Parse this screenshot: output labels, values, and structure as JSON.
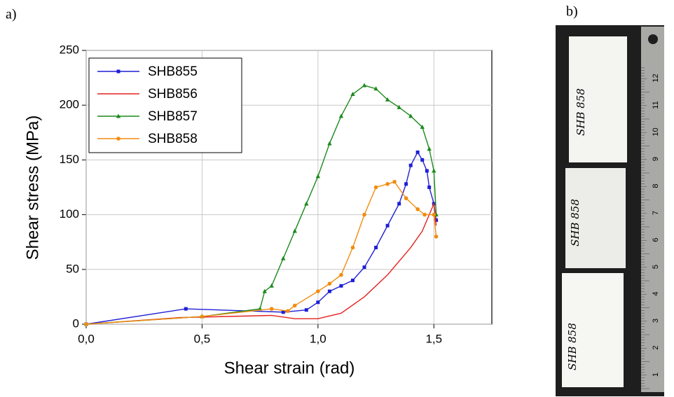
{
  "panels": [
    "a)",
    "b)"
  ],
  "chart_data": {
    "type": "line",
    "x_label": "Shear strain (rad)",
    "y_label": "Shear stress (MPa)",
    "xlim": [
      0,
      1.75
    ],
    "xticks": [
      {
        "value": 0,
        "label": "0,0"
      },
      {
        "value": 0.5,
        "label": "0,5"
      },
      {
        "value": 1.0,
        "label": "1,0"
      },
      {
        "value": 1.5,
        "label": "1,5"
      }
    ],
    "ylim": [
      0,
      250
    ],
    "yticks": [
      0,
      50,
      100,
      150,
      200,
      250
    ],
    "grid": true,
    "legend": "upper-left",
    "series": [
      {
        "name": "SHB855",
        "color": "#1f1fd6",
        "marker": "square",
        "x": [
          0,
          0.43,
          0.85,
          0.95,
          1.0,
          1.05,
          1.1,
          1.15,
          1.2,
          1.25,
          1.3,
          1.35,
          1.38,
          1.4,
          1.43,
          1.45,
          1.47,
          1.48,
          1.5,
          1.51
        ],
        "values": [
          0,
          14,
          11,
          13,
          20,
          30,
          35,
          40,
          52,
          70,
          90,
          110,
          128,
          145,
          157,
          150,
          140,
          125,
          110,
          95
        ]
      },
      {
        "name": "SHB856",
        "color": "#e3231f",
        "marker": "none",
        "x": [
          0,
          0.4,
          0.8,
          0.9,
          1.0,
          1.1,
          1.2,
          1.3,
          1.4,
          1.45,
          1.48,
          1.5,
          1.51
        ],
        "values": [
          0,
          6,
          8,
          5,
          5,
          10,
          25,
          45,
          70,
          85,
          100,
          110,
          90
        ]
      },
      {
        "name": "SHB857",
        "color": "#1c8a1c",
        "marker": "triangle",
        "x": [
          0,
          0.5,
          0.75,
          0.77,
          0.8,
          0.85,
          0.9,
          0.95,
          1.0,
          1.05,
          1.1,
          1.15,
          1.2,
          1.25,
          1.3,
          1.35,
          1.4,
          1.45,
          1.48,
          1.5,
          1.51
        ],
        "values": [
          0,
          7,
          14,
          30,
          35,
          60,
          85,
          110,
          135,
          165,
          190,
          210,
          218,
          215,
          205,
          198,
          190,
          180,
          160,
          140,
          100
        ]
      },
      {
        "name": "SHB858",
        "color": "#f28c0f",
        "marker": "circle",
        "x": [
          0,
          0.5,
          0.8,
          0.87,
          0.9,
          1.0,
          1.05,
          1.1,
          1.15,
          1.2,
          1.25,
          1.3,
          1.33,
          1.38,
          1.43,
          1.46,
          1.5,
          1.51
        ],
        "values": [
          0,
          7,
          14,
          12,
          17,
          30,
          37,
          45,
          70,
          100,
          125,
          128,
          130,
          115,
          105,
          100,
          100,
          80
        ]
      }
    ]
  },
  "photo": {
    "specimen_labels": [
      "SHB 858",
      "SHB 858",
      "SHB 858"
    ],
    "ruler_labels": [
      "1",
      "2",
      "3",
      "4",
      "5",
      "6",
      "7",
      "8",
      "9",
      "10",
      "11",
      "12"
    ]
  }
}
